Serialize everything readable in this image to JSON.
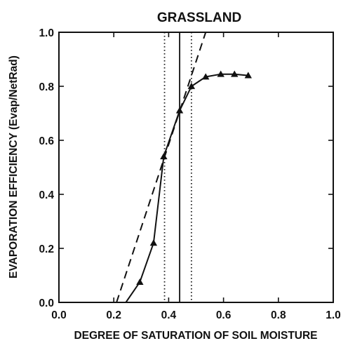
{
  "chart_data": {
    "type": "line",
    "title": "GRASSLAND",
    "xlabel": "DEGREE OF SATURATION OF SOIL MOISTURE",
    "ylabel": "EVAPORATION EFFICIENCY (Evap/NetRad)",
    "xlim": [
      0.0,
      1.0
    ],
    "ylim": [
      0.0,
      1.0
    ],
    "x_ticks": [
      "0.0",
      "0.2",
      "0.4",
      "0.6",
      "0.8",
      "1.0"
    ],
    "y_ticks": [
      "0.0",
      "0.2",
      "0.4",
      "0.6",
      "0.8",
      "1.0"
    ],
    "grid": false,
    "series": [
      {
        "style": "solid line with triangle markers",
        "color": "#111111",
        "x": [
          0.244,
          0.295,
          0.345,
          0.382,
          0.44,
          0.483,
          0.535,
          0.59,
          0.64,
          0.69
        ],
        "y": [
          0.0,
          0.075,
          0.22,
          0.54,
          0.71,
          0.8,
          0.835,
          0.845,
          0.845,
          0.84
        ],
        "markers": [
          {
            "x": 0.295,
            "y": 0.075
          },
          {
            "x": 0.345,
            "y": 0.22
          },
          {
            "x": 0.382,
            "y": 0.54
          },
          {
            "x": 0.44,
            "y": 0.71
          },
          {
            "x": 0.483,
            "y": 0.8
          },
          {
            "x": 0.535,
            "y": 0.835
          },
          {
            "x": 0.59,
            "y": 0.845
          },
          {
            "x": 0.64,
            "y": 0.845
          },
          {
            "x": 0.69,
            "y": 0.84
          }
        ]
      },
      {
        "style": "dashed line",
        "color": "#111111",
        "x": [
          0.21,
          0.535
        ],
        "y": [
          0.0,
          1.0
        ]
      }
    ],
    "vertical_lines": [
      {
        "x": 0.385,
        "style": "dotted"
      },
      {
        "x": 0.44,
        "style": "solid"
      },
      {
        "x": 0.483,
        "style": "dotted"
      }
    ]
  }
}
